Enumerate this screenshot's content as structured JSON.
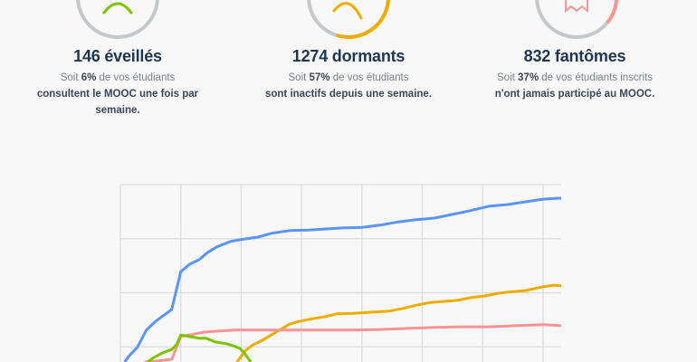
{
  "stats": [
    {
      "title": "146 éveillés",
      "pre": "Soit ",
      "pct": "6%",
      "post": " de vos étudiants",
      "line2": "consultent le MOOC une fois par semaine.",
      "color": "#7dc300",
      "icon": "frown-face-icon",
      "ring_fraction": 0.06
    },
    {
      "title": "1274 dormants",
      "pre": "Soit ",
      "pct": "57%",
      "post": " de vos étudiants",
      "line2": "sont inactifs depuis une semaine.",
      "color": "#f0ad00",
      "icon": "sleepy-face-icon",
      "ring_fraction": 0.57
    },
    {
      "title": "832 fantômes",
      "pre": "Soit ",
      "pct": "37%",
      "post": " de vos étudiants inscrits",
      "line2": "n'ont jamais participé au MOOC.",
      "color": "#ff9393",
      "icon": "ghost-icon",
      "ring_fraction": 0.37
    }
  ],
  "chart_data": {
    "type": "line",
    "title": "",
    "xlabel": "",
    "ylabel": "",
    "xlim": [
      0,
      7.3
    ],
    "ylim": [
      0,
      4
    ],
    "grid": true,
    "series": [
      {
        "name": "blue",
        "color": "#5b95f9",
        "points": [
          [
            0.07,
            0.72
          ],
          [
            0.15,
            0.84
          ],
          [
            0.28,
            0.99
          ],
          [
            0.43,
            1.31
          ],
          [
            0.58,
            1.47
          ],
          [
            0.85,
            1.69
          ],
          [
            1.0,
            2.39
          ],
          [
            1.15,
            2.53
          ],
          [
            1.3,
            2.61
          ],
          [
            1.45,
            2.75
          ],
          [
            1.6,
            2.85
          ],
          [
            1.83,
            2.95
          ],
          [
            1.98,
            2.98
          ],
          [
            2.28,
            3.03
          ],
          [
            2.5,
            3.1
          ],
          [
            2.8,
            3.15
          ],
          [
            3.1,
            3.16
          ],
          [
            3.4,
            3.18
          ],
          [
            3.7,
            3.2
          ],
          [
            4.0,
            3.21
          ],
          [
            4.3,
            3.25
          ],
          [
            4.6,
            3.31
          ],
          [
            4.9,
            3.35
          ],
          [
            5.2,
            3.38
          ],
          [
            5.5,
            3.45
          ],
          [
            5.8,
            3.52
          ],
          [
            6.1,
            3.6
          ],
          [
            6.4,
            3.63
          ],
          [
            6.7,
            3.68
          ],
          [
            7.0,
            3.73
          ],
          [
            7.3,
            3.75
          ]
        ]
      },
      {
        "name": "orange",
        "color": "#f0ad00",
        "points": [
          [
            1.93,
            0.72
          ],
          [
            2.08,
            0.94
          ],
          [
            2.2,
            1.04
          ],
          [
            2.35,
            1.12
          ],
          [
            2.5,
            1.22
          ],
          [
            2.65,
            1.32
          ],
          [
            2.8,
            1.42
          ],
          [
            2.95,
            1.47
          ],
          [
            3.18,
            1.52
          ],
          [
            3.4,
            1.56
          ],
          [
            3.58,
            1.61
          ],
          [
            3.85,
            1.62
          ],
          [
            4.15,
            1.64
          ],
          [
            4.45,
            1.66
          ],
          [
            4.68,
            1.71
          ],
          [
            4.9,
            1.77
          ],
          [
            5.13,
            1.82
          ],
          [
            5.35,
            1.84
          ],
          [
            5.58,
            1.86
          ],
          [
            5.8,
            1.91
          ],
          [
            6.03,
            1.94
          ],
          [
            6.25,
            1.99
          ],
          [
            6.4,
            2.01
          ],
          [
            6.7,
            2.04
          ],
          [
            7.0,
            2.11
          ],
          [
            7.18,
            2.14
          ],
          [
            7.3,
            2.13
          ]
        ]
      },
      {
        "name": "pink",
        "color": "#ff9393",
        "points": [
          [
            0.4,
            0.72
          ],
          [
            0.63,
            0.74
          ],
          [
            0.85,
            0.77
          ],
          [
            1.0,
            1.19
          ],
          [
            1.15,
            1.22
          ],
          [
            1.38,
            1.27
          ],
          [
            1.6,
            1.29
          ],
          [
            1.9,
            1.31
          ],
          [
            2.2,
            1.31
          ],
          [
            2.95,
            1.31
          ],
          [
            3.4,
            1.31
          ],
          [
            3.85,
            1.31
          ],
          [
            4.3,
            1.32
          ],
          [
            4.75,
            1.34
          ],
          [
            5.2,
            1.36
          ],
          [
            5.65,
            1.37
          ],
          [
            6.1,
            1.37
          ],
          [
            6.55,
            1.39
          ],
          [
            7.0,
            1.41
          ],
          [
            7.3,
            1.39
          ]
        ]
      },
      {
        "name": "green",
        "color": "#7dc300",
        "points": [
          [
            0.45,
            0.72
          ],
          [
            0.55,
            0.8
          ],
          [
            0.7,
            0.89
          ],
          [
            0.85,
            0.95
          ],
          [
            0.93,
            1.04
          ],
          [
            1.0,
            1.22
          ],
          [
            1.15,
            1.19
          ],
          [
            1.3,
            1.16
          ],
          [
            1.42,
            1.16
          ],
          [
            1.57,
            1.09
          ],
          [
            1.75,
            1.06
          ],
          [
            1.87,
            1.02
          ],
          [
            1.98,
            0.97
          ],
          [
            2.05,
            0.89
          ],
          [
            2.16,
            0.72
          ]
        ]
      }
    ]
  }
}
